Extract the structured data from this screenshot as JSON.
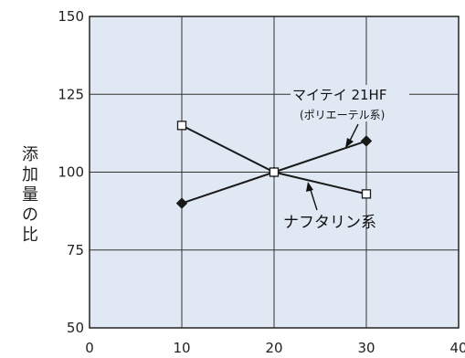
{
  "chart_data": {
    "type": "line",
    "ylabel": "添加量の比",
    "xlim": [
      0,
      40
    ],
    "ylim": [
      50,
      150
    ],
    "x_ticks": [
      "0",
      "10",
      "20",
      "30",
      "40"
    ],
    "y_ticks": [
      "50",
      "75",
      "100",
      "125",
      "150"
    ],
    "grid": true,
    "x": [
      10,
      20,
      30
    ],
    "series": [
      {
        "name": "マイテイ 21HF",
        "sublabel": "(ポリエーテル系)",
        "marker": "diamond-filled",
        "values": [
          90,
          100,
          110
        ]
      },
      {
        "name": "ナフタリン系",
        "sublabel": "",
        "marker": "square-open",
        "values": [
          115,
          100,
          93
        ]
      }
    ],
    "colors": {
      "plot_bg": "#dfe8f3",
      "line": "#1a1a1a",
      "grid": "#333333"
    }
  }
}
